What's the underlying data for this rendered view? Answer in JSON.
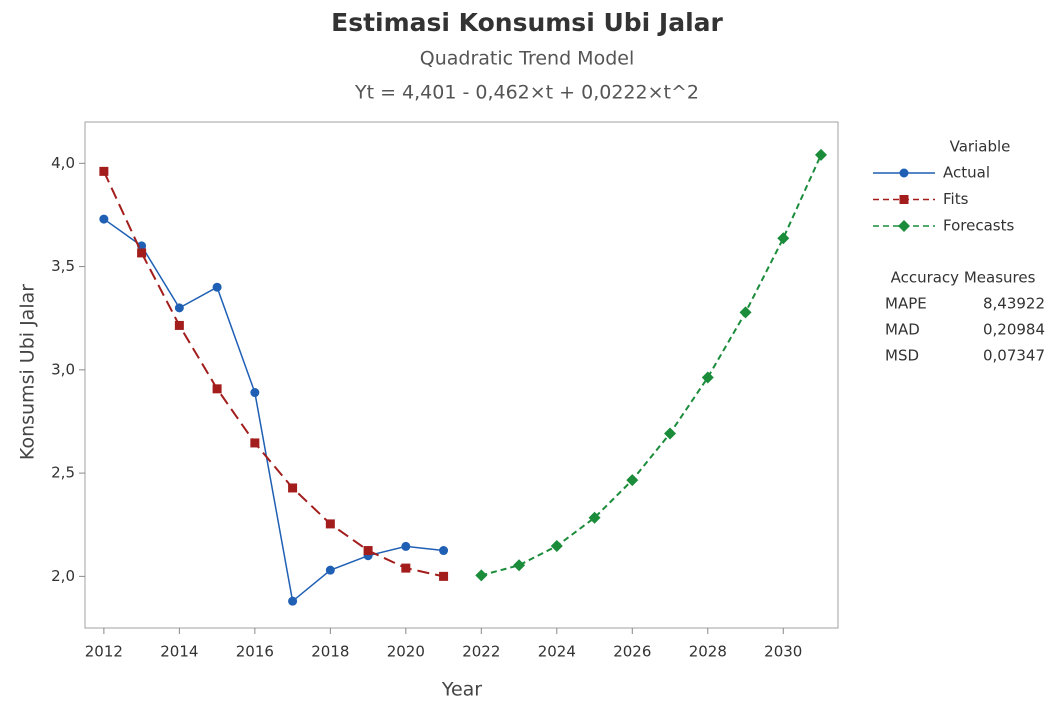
{
  "chart_data": {
    "type": "line",
    "title": "Estimasi Konsumsi Ubi Jalar",
    "subtitle": "Quadratic Trend Model",
    "equation": "Yt = 4,401 - 0,462×t + 0,0222×t^2",
    "x_label": "Year",
    "y_label": "Konsumsi Ubi Jalar",
    "xlim": [
      2011.5,
      2031.45
    ],
    "ylim": [
      1.75,
      4.2
    ],
    "xticks": [
      2012,
      2014,
      2016,
      2018,
      2020,
      2022,
      2024,
      2026,
      2028,
      2030
    ],
    "yticks": [
      {
        "value": 2.0,
        "label": "2,0"
      },
      {
        "value": 2.5,
        "label": "2,5"
      },
      {
        "value": 3.0,
        "label": "3,0"
      },
      {
        "value": 3.5,
        "label": "3,5"
      },
      {
        "value": 4.0,
        "label": "4,0"
      }
    ],
    "grid": false,
    "legend_title": "Variable",
    "series": [
      {
        "name": "Actual",
        "color": "#1f5fb4",
        "line_style": "solid",
        "marker": "circle",
        "x": [
          2012,
          2013,
          2014,
          2015,
          2016,
          2017,
          2018,
          2019,
          2020,
          2021
        ],
        "values": [
          3.73,
          3.6,
          3.3,
          3.4,
          2.89,
          1.88,
          2.03,
          2.1,
          2.145,
          2.125
        ]
      },
      {
        "name": "Fits",
        "color": "#a31d1d",
        "line_style": "dashed",
        "marker": "square",
        "x": [
          2012,
          2013,
          2014,
          2015,
          2016,
          2017,
          2018,
          2019,
          2020,
          2021
        ],
        "values": [
          3.961,
          3.566,
          3.215,
          2.908,
          2.646,
          2.428,
          2.254,
          2.125,
          2.04,
          2.0
        ]
      },
      {
        "name": "Forecasts",
        "color": "#1a8c3a",
        "line_style": "dashed",
        "marker": "diamond",
        "x": [
          2022,
          2023,
          2024,
          2025,
          2026,
          2027,
          2028,
          2029,
          2030,
          2031
        ],
        "values": [
          2.005,
          2.054,
          2.147,
          2.284,
          2.466,
          2.692,
          2.963,
          3.278,
          3.637,
          4.041
        ]
      }
    ],
    "accuracy": {
      "title": "Accuracy Measures",
      "rows": [
        [
          "MAPE",
          "8,43922"
        ],
        [
          "MAD",
          "0,20984"
        ],
        [
          "MSD",
          "0,07347"
        ]
      ]
    }
  }
}
